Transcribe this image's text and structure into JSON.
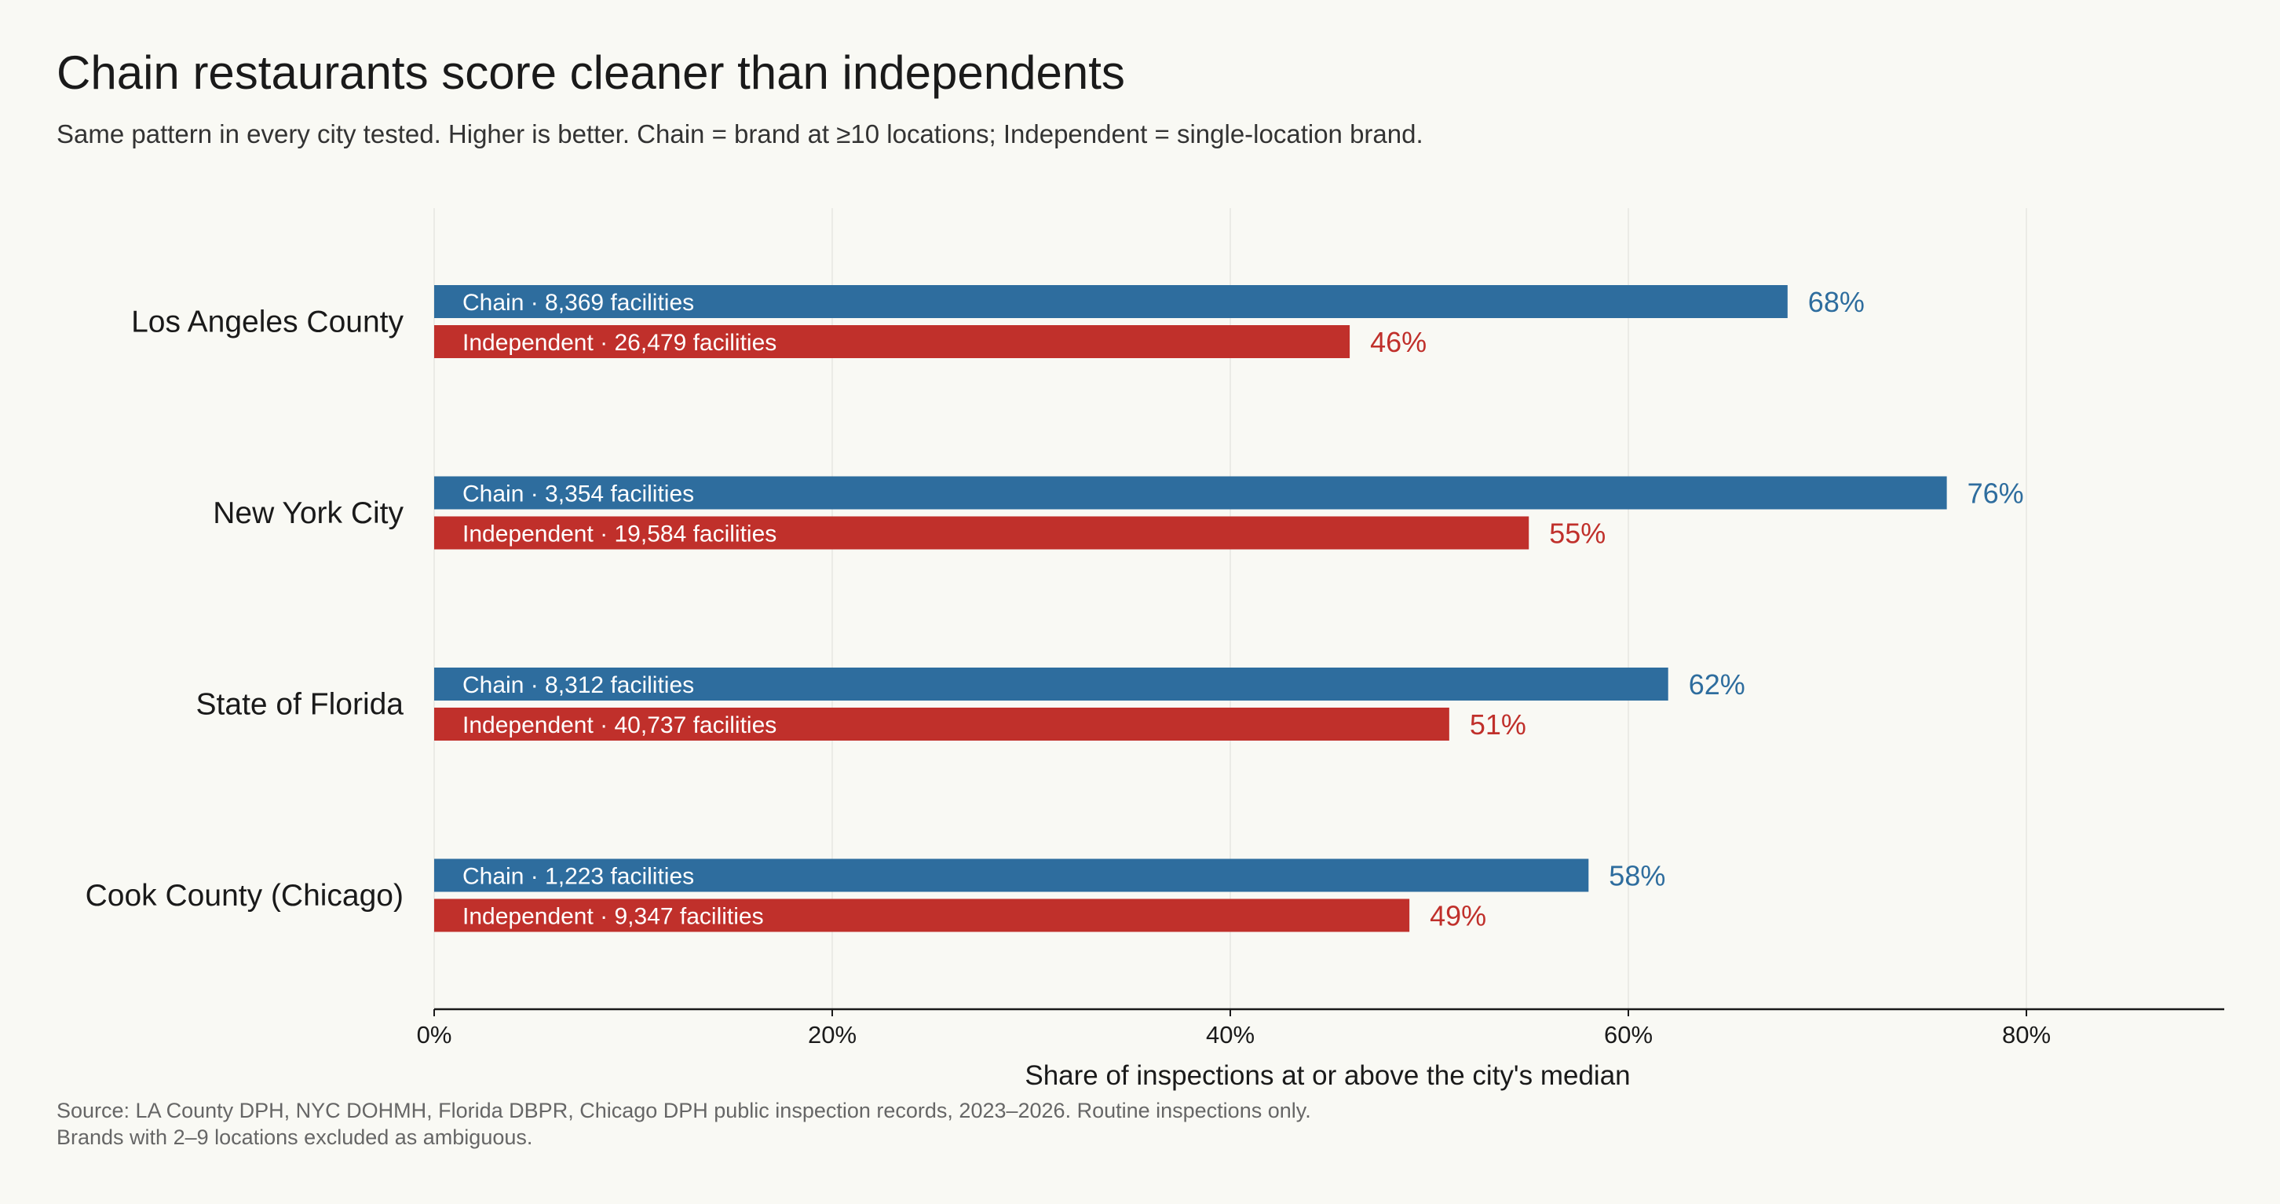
{
  "header": {
    "title": "Chain restaurants score cleaner than independents",
    "subtitle": "Same pattern in every city tested. Higher is better.  Chain = brand at ≥10 locations; Independent = single-location brand."
  },
  "footer": {
    "source_line1": "Source: LA County DPH, NYC DOHMH, Florida DBPR, Chicago DPH public inspection records, 2023–2026. Routine inspections only.",
    "source_line2": "Brands with 2–9 locations excluded as ambiguous."
  },
  "colors": {
    "chain": "#2e6d9e",
    "independent": "#c0302b",
    "background": "#f9f9f4",
    "axis": "#1a1a1a",
    "grid": "#ebebe6"
  },
  "chart_data": {
    "type": "bar",
    "orientation": "horizontal",
    "title": "Chain restaurants score cleaner than independents",
    "subtitle": "Same pattern in every city tested. Higher is better.  Chain = brand at ≥10 locations; Independent = single-location brand.",
    "xlabel": "Share of inspections at or above the city's median",
    "ylabel": "",
    "xlim": [
      0,
      90
    ],
    "xticks": [
      0,
      20,
      40,
      60,
      80
    ],
    "xtick_labels": [
      "0%",
      "20%",
      "40%",
      "60%",
      "80%"
    ],
    "grid": "vertical",
    "legend": "none (series labels drawn inside bars)",
    "categories": [
      "Los Angeles County",
      "New York City",
      "State of Florida",
      "Cook County (Chicago)"
    ],
    "series": [
      {
        "name": "Chain",
        "values": [
          68,
          76,
          62,
          58
        ],
        "value_labels": [
          "68%",
          "76%",
          "62%",
          "58%"
        ],
        "bar_labels": [
          "Chain  ·  8,369 facilities",
          "Chain  ·  3,354 facilities",
          "Chain  ·  8,312 facilities",
          "Chain  ·  1,223 facilities"
        ]
      },
      {
        "name": "Independent",
        "values": [
          46,
          55,
          51,
          49
        ],
        "value_labels": [
          "46%",
          "55%",
          "51%",
          "49%"
        ],
        "bar_labels": [
          "Independent  ·  26,479 facilities",
          "Independent  ·  19,584 facilities",
          "Independent  ·  40,737 facilities",
          "Independent  ·  9,347 facilities"
        ]
      }
    ]
  }
}
